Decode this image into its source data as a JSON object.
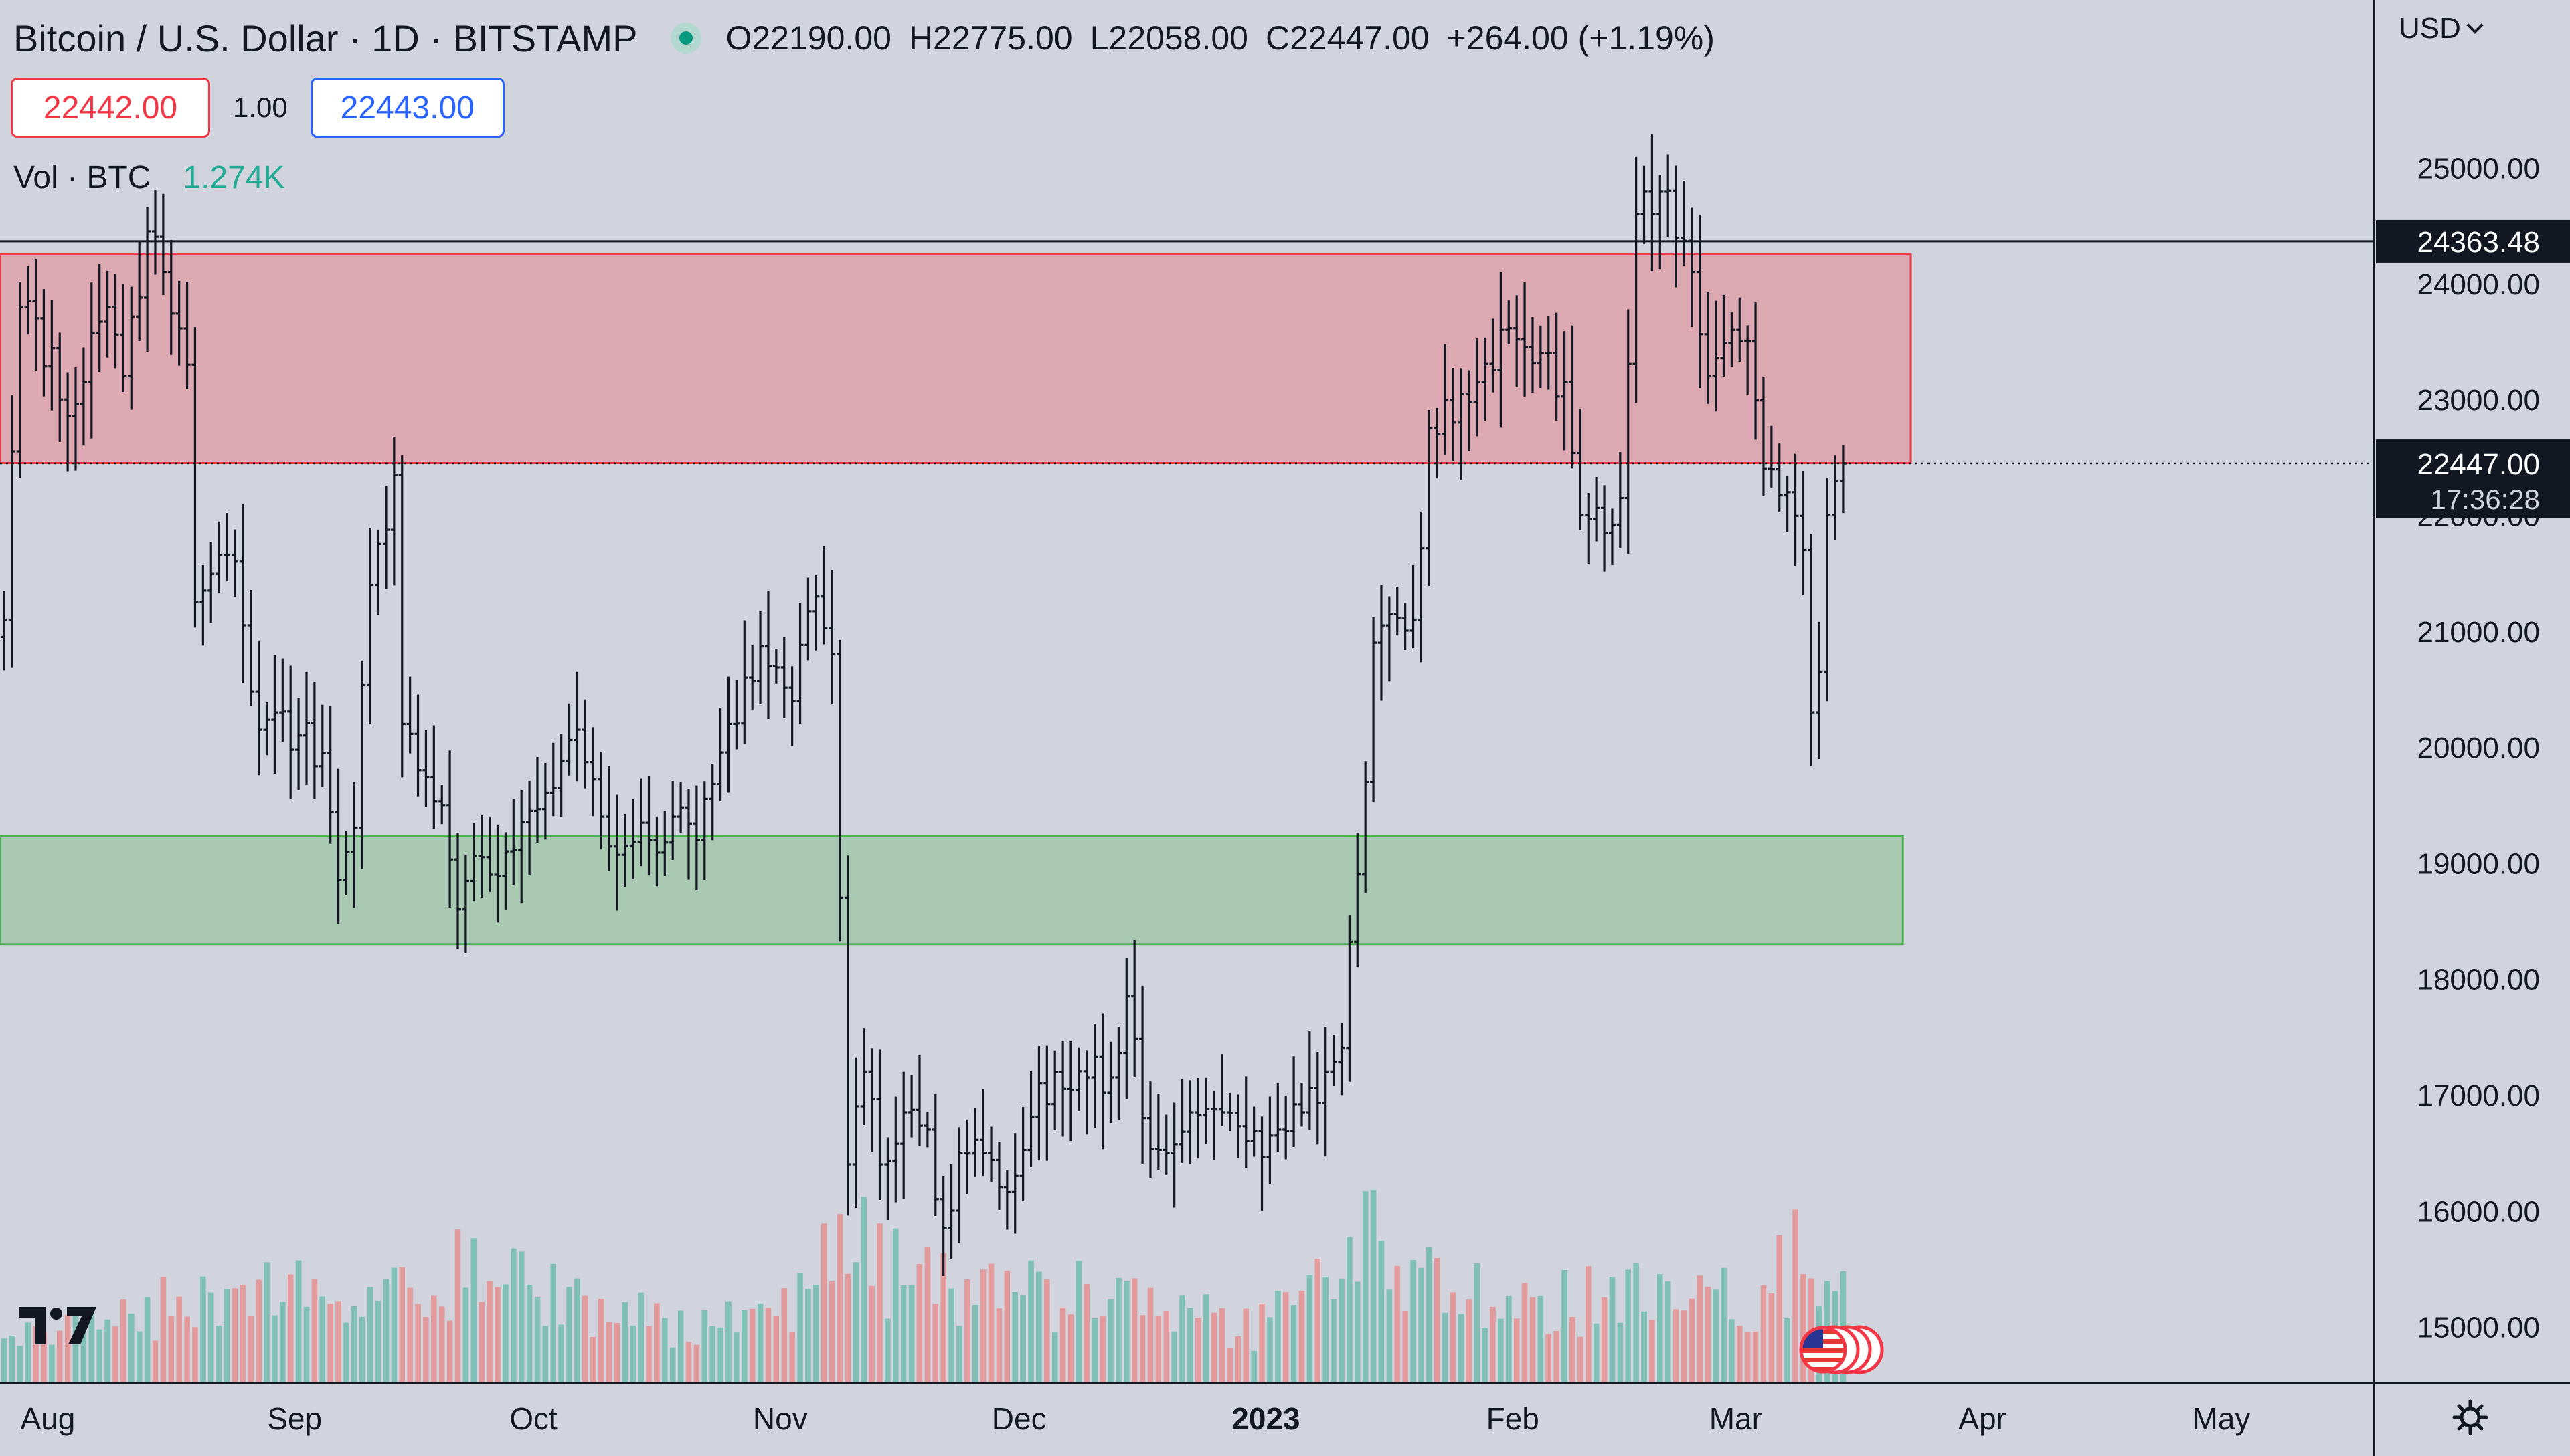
{
  "header": {
    "symbol": "Bitcoin / U.S. Dollar · 1D · BITSTAMP",
    "open_label": "O",
    "open": "22190.00",
    "high_label": "H",
    "high": "22775.00",
    "low_label": "L",
    "low": "22058.00",
    "close_label": "C",
    "close": "22447.00",
    "change": "+264.00 (+1.19%)"
  },
  "quotes": {
    "sell": "22442.00",
    "size": "1.00",
    "buy": "22443.00"
  },
  "volume": {
    "label": "Vol · BTC",
    "value": "1.274K"
  },
  "currency": "USD",
  "price_axis": {
    "ticks": [
      "15000.00",
      "16000.00",
      "17000.00",
      "18000.00",
      "19000.00",
      "20000.00",
      "21000.00",
      "22000.00",
      "23000.00",
      "24000.00",
      "25000.00"
    ],
    "crosshair_label": "24363.48",
    "last_price_label": "22447.00",
    "countdown_label": "17:36:28"
  },
  "time_axis": [
    "Aug",
    "Sep",
    "Oct",
    "Nov",
    "Dec",
    "2023",
    "Feb",
    "Mar",
    "Apr",
    "May"
  ],
  "colors": {
    "background": "#d1d4dc",
    "bar": "#131722",
    "resistance_fill": "#dca8b2",
    "resistance_border": "#f23645",
    "support_fill": "#a9c9b3",
    "support_border": "#4caf50",
    "volume_up": "#7fbfb5",
    "volume_down": "#e39a9d"
  },
  "icons": {
    "logo": "tradingview-logo-icon",
    "flag": "us-flag-icon",
    "settings": "gear-icon"
  },
  "chart_data": {
    "type": "ohlc-bar",
    "interval": "1D",
    "x_range": [
      "2022-07-26",
      "2023-05-20"
    ],
    "y_range": [
      14500,
      25950
    ],
    "zones": [
      {
        "kind": "resistance",
        "from_date": "2022-07-26",
        "to_date": "2023-03-23",
        "low": 22450,
        "high": 24250
      },
      {
        "kind": "support",
        "from_date": "2022-07-26",
        "to_date": "2023-03-22",
        "low": 18300,
        "high": 19230
      }
    ],
    "horizontal_line": 24363.48,
    "last_price": 22447.0,
    "anchors": [
      [
        "2022-07-26",
        21100
      ],
      [
        "2022-07-28",
        23800
      ],
      [
        "2022-07-30",
        23700
      ],
      [
        "2022-08-02",
        23000
      ],
      [
        "2022-08-05",
        23150
      ],
      [
        "2022-08-08",
        23800
      ],
      [
        "2022-08-10",
        23200
      ],
      [
        "2022-08-13",
        24450
      ],
      [
        "2022-08-15",
        24100
      ],
      [
        "2022-08-18",
        23300
      ],
      [
        "2022-08-19",
        21250
      ],
      [
        "2022-08-21",
        21500
      ],
      [
        "2022-08-24",
        21600
      ],
      [
        "2022-08-27",
        20150
      ],
      [
        "2022-08-29",
        20300
      ],
      [
        "2022-09-01",
        20100
      ],
      [
        "2022-09-04",
        19950
      ],
      [
        "2022-09-06",
        18850
      ],
      [
        "2022-09-08",
        19300
      ],
      [
        "2022-09-10",
        21400
      ],
      [
        "2022-09-13",
        22350
      ],
      [
        "2022-09-14",
        20200
      ],
      [
        "2022-09-16",
        19800
      ],
      [
        "2022-09-19",
        19500
      ],
      [
        "2022-09-21",
        18600
      ],
      [
        "2022-09-24",
        19050
      ],
      [
        "2022-09-27",
        19100
      ],
      [
        "2022-09-30",
        19450
      ],
      [
        "2022-10-03",
        19650
      ],
      [
        "2022-10-06",
        20150
      ],
      [
        "2022-10-09",
        19400
      ],
      [
        "2022-10-12",
        19150
      ],
      [
        "2022-10-15",
        19200
      ],
      [
        "2022-10-18",
        19400
      ],
      [
        "2022-10-21",
        19200
      ],
      [
        "2022-10-25",
        20200
      ],
      [
        "2022-10-27",
        20600
      ],
      [
        "2022-10-30",
        20700
      ],
      [
        "2022-11-02",
        20400
      ],
      [
        "2022-11-05",
        21300
      ],
      [
        "2022-11-07",
        20800
      ],
      [
        "2022-11-08",
        18700
      ],
      [
        "2022-11-09",
        16400
      ],
      [
        "2022-11-11",
        17200
      ],
      [
        "2022-11-13",
        16400
      ],
      [
        "2022-11-16",
        16850
      ],
      [
        "2022-11-19",
        16700
      ],
      [
        "2022-11-21",
        15850
      ],
      [
        "2022-11-23",
        16500
      ],
      [
        "2022-11-26",
        16500
      ],
      [
        "2022-11-30",
        16300
      ],
      [
        "2022-12-03",
        17100
      ],
      [
        "2022-12-06",
        17050
      ],
      [
        "2022-12-09",
        17150
      ],
      [
        "2022-12-12",
        17150
      ],
      [
        "2022-12-14",
        17850
      ],
      [
        "2022-12-16",
        16800
      ],
      [
        "2022-12-19",
        16500
      ],
      [
        "2022-12-22",
        16850
      ],
      [
        "2022-12-26",
        16850
      ],
      [
        "2022-12-29",
        16600
      ],
      [
        "2023-01-02",
        16700
      ],
      [
        "2023-01-05",
        16850
      ],
      [
        "2023-01-08",
        17200
      ],
      [
        "2023-01-10",
        17400
      ],
      [
        "2023-01-12",
        18900
      ],
      [
        "2023-01-14",
        20900
      ],
      [
        "2023-01-16",
        21150
      ],
      [
        "2023-01-19",
        21100
      ],
      [
        "2023-01-21",
        22750
      ],
      [
        "2023-01-24",
        22800
      ],
      [
        "2023-01-27",
        23150
      ],
      [
        "2023-01-30",
        23600
      ],
      [
        "2023-02-02",
        23450
      ],
      [
        "2023-02-04",
        23400
      ],
      [
        "2023-02-07",
        23150
      ],
      [
        "2023-02-09",
        22000
      ],
      [
        "2023-02-12",
        21850
      ],
      [
        "2023-02-14",
        22150
      ],
      [
        "2023-02-16",
        24600
      ],
      [
        "2023-02-18",
        24600
      ],
      [
        "2023-02-20",
        24800
      ],
      [
        "2023-02-23",
        24100
      ],
      [
        "2023-02-25",
        23200
      ],
      [
        "2023-02-28",
        23600
      ],
      [
        "2023-03-02",
        23500
      ],
      [
        "2023-03-04",
        22400
      ],
      [
        "2023-03-07",
        22200
      ],
      [
        "2023-03-09",
        21700
      ],
      [
        "2023-03-10",
        20300
      ],
      [
        "2023-03-11",
        20650
      ],
      [
        "2023-03-12",
        22000
      ],
      [
        "2023-03-13",
        22300
      ],
      [
        "2023-03-14",
        22447
      ]
    ],
    "volume_profile": [
      [
        "2022-07-26",
        0.35
      ],
      [
        "2022-08-20",
        0.5
      ],
      [
        "2022-09-15",
        0.7
      ],
      [
        "2022-10-20",
        0.35
      ],
      [
        "2022-11-03",
        0.55
      ],
      [
        "2022-11-09",
        1.0
      ],
      [
        "2022-11-12",
        0.7
      ],
      [
        "2022-11-22",
        0.55
      ],
      [
        "2022-12-16",
        0.5
      ],
      [
        "2022-12-30",
        0.3
      ],
      [
        "2023-01-12",
        0.75
      ],
      [
        "2023-01-14",
        0.95
      ],
      [
        "2023-01-20",
        0.6
      ],
      [
        "2023-02-10",
        0.5
      ],
      [
        "2023-02-16",
        0.65
      ],
      [
        "2023-03-01",
        0.45
      ],
      [
        "2023-03-10",
        0.85
      ],
      [
        "2023-03-14",
        0.7
      ]
    ]
  }
}
